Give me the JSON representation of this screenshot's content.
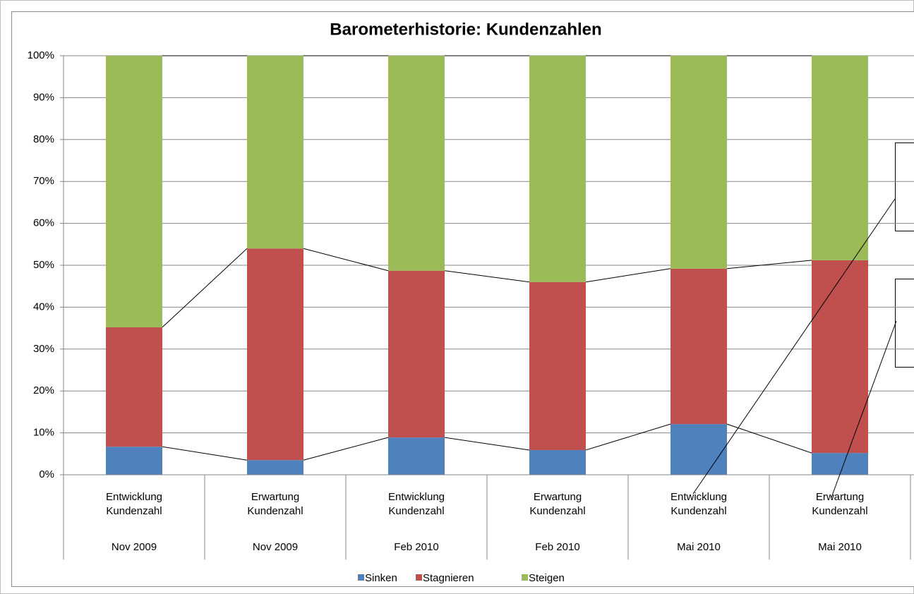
{
  "chart_data": {
    "type": "stacked_bar",
    "title": "Barometerhistorie: Kundenzahlen",
    "categories": [
      [
        "Entwicklung",
        "Kundenzahl"
      ],
      [
        "Erwartung",
        "Kundenzahl"
      ],
      [
        "Entwicklung",
        "Kundenzahl"
      ],
      [
        "Erwartung",
        "Kundenzahl"
      ],
      [
        "Entwicklung",
        "Kundenzahl"
      ],
      [
        "Erwartung",
        "Kundenzahl"
      ]
    ],
    "groups": [
      "Nov 2009",
      "Nov 2009",
      "Feb 2010",
      "Feb 2010",
      "Mai 2010",
      "Mai 2010"
    ],
    "series": [
      {
        "name": "Sinken",
        "color": "#4f81bd",
        "values": [
          6.7,
          3.5,
          8.9,
          5.9,
          12.1,
          5.2
        ]
      },
      {
        "name": "Stagnieren",
        "color": "#c0504d",
        "values": [
          28.5,
          50.5,
          39.8,
          40.1,
          37.1,
          46.0
        ]
      },
      {
        "name": "Steigen",
        "color": "#9bbb59",
        "values": [
          64.8,
          46.0,
          51.3,
          54.0,
          50.8,
          48.8
        ]
      }
    ],
    "ylim": [
      0,
      100
    ],
    "yticks": [
      {
        "value": 0,
        "label": "0%"
      },
      {
        "value": 10,
        "label": "10%"
      },
      {
        "value": 20,
        "label": "20%"
      },
      {
        "value": 30,
        "label": "30%"
      },
      {
        "value": 40,
        "label": "40%"
      },
      {
        "value": 50,
        "label": "50%"
      },
      {
        "value": 60,
        "label": "60%"
      },
      {
        "value": 70,
        "label": "70%"
      },
      {
        "value": 80,
        "label": "80%"
      },
      {
        "value": 90,
        "label": "90%"
      },
      {
        "value": 100,
        "label": "100%"
      }
    ],
    "grid": true,
    "legend": "bottom"
  }
}
